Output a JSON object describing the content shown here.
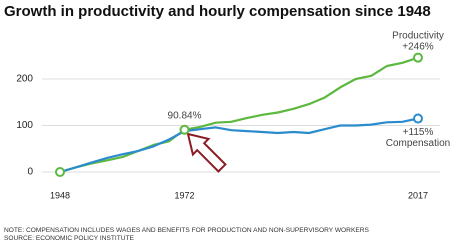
{
  "chart_data": {
    "type": "line",
    "title": "Growth in productivity and hourly compensation since 1948",
    "x": [
      1948,
      1951,
      1954,
      1957,
      1960,
      1963,
      1966,
      1969,
      1972,
      1975,
      1978,
      1981,
      1984,
      1987,
      1990,
      1993,
      1996,
      1999,
      2002,
      2005,
      2008,
      2011,
      2014,
      2017
    ],
    "series": [
      {
        "name": "Productivity",
        "color": "#5cb83f",
        "values": [
          0,
          10,
          18,
          25,
          32,
          45,
          58,
          66,
          90.84,
          97,
          106,
          108,
          116,
          123,
          128,
          136,
          146,
          160,
          182,
          200,
          207,
          228,
          235,
          246
        ]
      },
      {
        "name": "Compensation",
        "color": "#2b8ccd",
        "values": [
          0,
          10,
          20,
          30,
          38,
          45,
          55,
          70,
          88,
          92,
          96,
          90,
          88,
          86,
          84,
          86,
          84,
          92,
          100,
          100,
          102,
          107,
          108,
          115
        ]
      }
    ],
    "xlim": [
      1948,
      2017
    ],
    "xticks": [
      1948,
      1972,
      2017
    ],
    "ylim": [
      0,
      270
    ],
    "yticks": [
      0,
      100,
      200
    ],
    "grid": true,
    "annotations": [
      "90.84%",
      "+246%",
      "+115%"
    ],
    "notes": [
      "NOTE: COMPENSATION INCLUDES WAGES AND BENEFITS FOR PRODUCTION AND NON-SUPERVISORY WORKERS",
      "SOURCE: ECONOMIC POLICY INSTITUTE"
    ]
  }
}
